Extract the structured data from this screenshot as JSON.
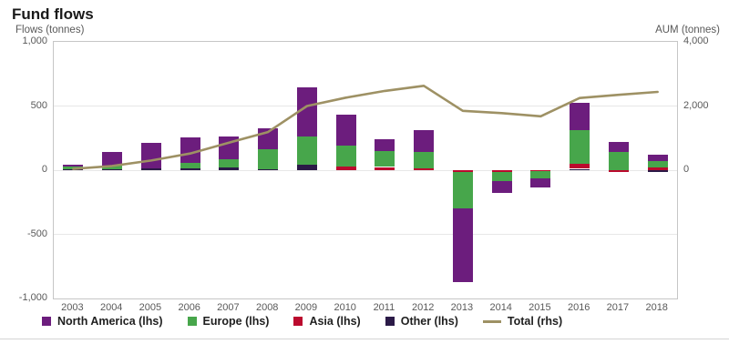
{
  "title": "Fund flows",
  "axes": {
    "left_caption": "Flows (tonnes)",
    "right_caption": "AUM (tonnes)"
  },
  "colors": {
    "north_america": "#6c1d7d",
    "europe": "#47a64b",
    "asia": "#bb0a2e",
    "other": "#2b1a47",
    "total_line": "#9e9164",
    "grid": "#e7e7e7",
    "frame": "#c6c6c6",
    "muted_text": "#595959",
    "title_text": "#1a1a1a"
  },
  "legend": [
    {
      "label": "North America (lhs)",
      "swatch": "square",
      "color": "#6c1d7d"
    },
    {
      "label": "Europe (lhs)",
      "swatch": "square",
      "color": "#47a64b"
    },
    {
      "label": "Asia (lhs)",
      "swatch": "square",
      "color": "#bb0a2e"
    },
    {
      "label": "Other (lhs)",
      "swatch": "square",
      "color": "#2b1a47"
    },
    {
      "label": "Total (rhs)",
      "swatch": "line",
      "color": "#9e9164"
    }
  ],
  "chart_data": {
    "type": "combo (stacked bar + line)",
    "title": "Fund flows",
    "categories": [
      "2003",
      "2004",
      "2005",
      "2006",
      "2007",
      "2008",
      "2009",
      "2010",
      "2011",
      "2012",
      "2013",
      "2014",
      "2015",
      "2016",
      "2017",
      "2018"
    ],
    "left_axis": {
      "label": "Flows (tonnes)",
      "range": [
        -1000,
        1000
      ],
      "ticks": [
        {
          "value": 1000,
          "label": "1,000"
        },
        {
          "value": 500,
          "label": "500"
        },
        {
          "value": 0,
          "label": "0"
        },
        {
          "value": -500,
          "label": "-500"
        },
        {
          "value": -1000,
          "label": "-1,000"
        }
      ],
      "gridlines": [
        500,
        0,
        -500
      ]
    },
    "right_axis": {
      "label": "AUM (tonnes)",
      "range": [
        -4000,
        4000
      ],
      "ticks": [
        {
          "value": 4000,
          "label": "4,000"
        },
        {
          "value": 2000,
          "label": "2,000"
        },
        {
          "value": 0,
          "label": "0"
        }
      ]
    },
    "series": [
      {
        "name": "North America (lhs)",
        "type": "bar",
        "axis": "left",
        "color": "#6c1d7d",
        "values": [
          15,
          105,
          195,
          195,
          180,
          160,
          385,
          240,
          95,
          165,
          -575,
          -95,
          -70,
          210,
          80,
          50
        ]
      },
      {
        "name": "Europe (lhs)",
        "type": "bar",
        "axis": "left",
        "color": "#47a64b",
        "values": [
          20,
          30,
          0,
          45,
          60,
          155,
          215,
          160,
          125,
          130,
          -280,
          -70,
          -60,
          265,
          140,
          50
        ]
      },
      {
        "name": "Asia (lhs)",
        "type": "bar",
        "axis": "left",
        "color": "#bb0a2e",
        "values": [
          0,
          0,
          0,
          0,
          0,
          0,
          0,
          30,
          25,
          15,
          -15,
          -15,
          -5,
          40,
          -15,
          20
        ]
      },
      {
        "name": "Other (lhs)",
        "type": "bar",
        "axis": "left",
        "color": "#2b1a47",
        "values": [
          10,
          5,
          15,
          15,
          25,
          10,
          45,
          0,
          0,
          0,
          0,
          0,
          0,
          10,
          0,
          -15
        ]
      },
      {
        "name": "Total (rhs)",
        "type": "line",
        "axis": "right",
        "color": "#9e9164",
        "values": [
          40,
          130,
          300,
          520,
          860,
          1190,
          2000,
          2260,
          2470,
          2630,
          1850,
          1780,
          1680,
          2250,
          2350,
          2440
        ]
      }
    ],
    "legend_position": "bottom",
    "grid": "horizontal-only",
    "stack_order_from_zero": [
      "Other",
      "Asia",
      "Europe",
      "North America"
    ]
  }
}
